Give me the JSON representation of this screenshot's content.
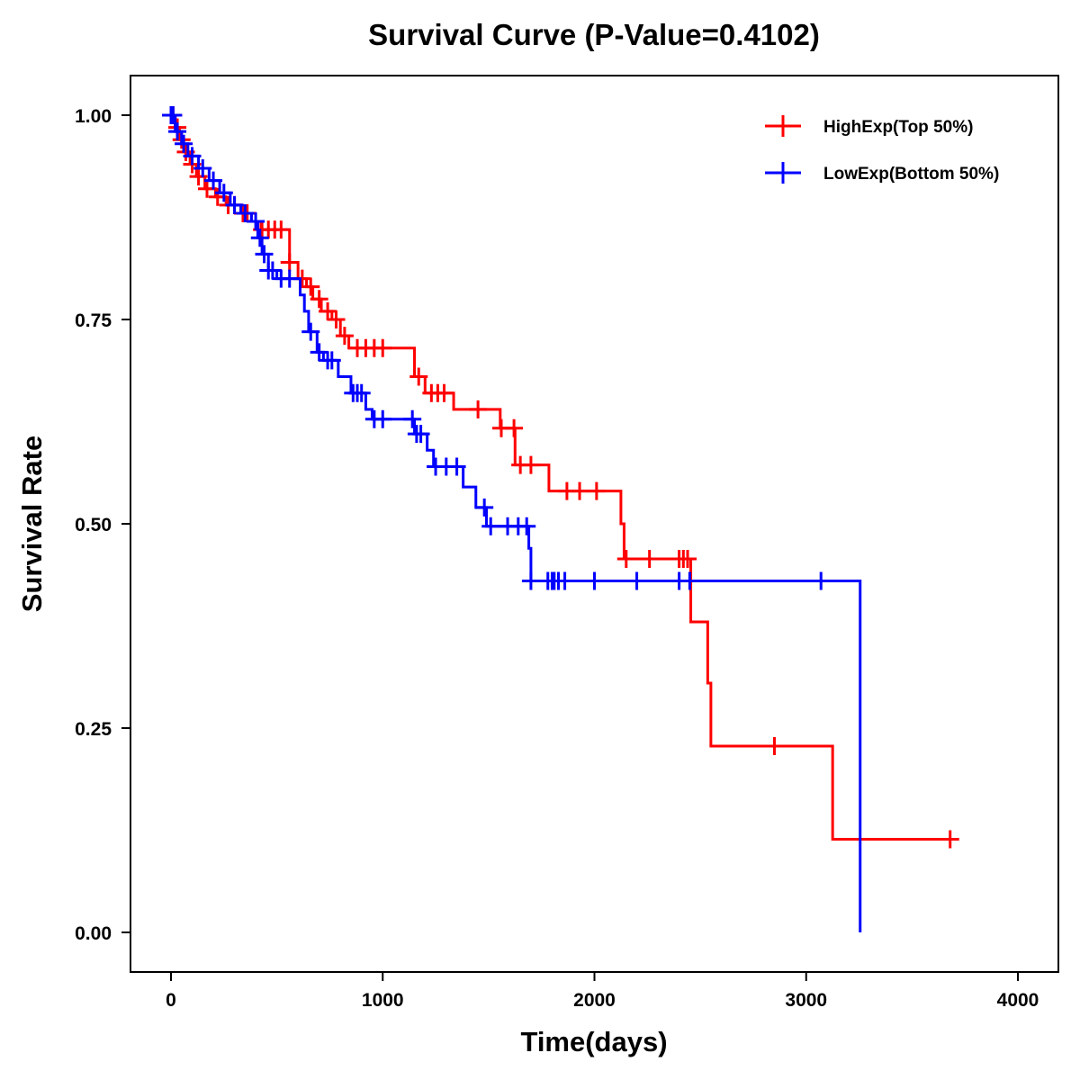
{
  "chart_data": {
    "type": "line",
    "subtype": "kaplan-meier",
    "title": "Survival Curve (P-Value=0.4102)",
    "xlabel": "Time(days)",
    "ylabel": "Survival Rate",
    "xlim": [
      -200,
      4200
    ],
    "ylim": [
      -0.05,
      1.05
    ],
    "xticks": [
      0,
      1000,
      2000,
      3000,
      4000
    ],
    "xtick_labels": [
      "0",
      "1000",
      "2000",
      "3000",
      "4000"
    ],
    "yticks": [
      0,
      0.25,
      0.5,
      0.75,
      1.0
    ],
    "ytick_labels": [
      "0.00",
      "0.25",
      "0.50",
      "0.75",
      "1.00"
    ],
    "grid": false,
    "legend_position": "top-right",
    "series": [
      {
        "name": "HighExp(Top 50%)",
        "color": "#ff0000",
        "end_time": 3710,
        "steps": [
          [
            0,
            1
          ],
          [
            20,
            0.985
          ],
          [
            40,
            0.97
          ],
          [
            60,
            0.955
          ],
          [
            90,
            0.94
          ],
          [
            120,
            0.925
          ],
          [
            160,
            0.91
          ],
          [
            210,
            0.9
          ],
          [
            260,
            0.89
          ],
          [
            330,
            0.88
          ],
          [
            380,
            0.87
          ],
          [
            425,
            0.86
          ],
          [
            560,
            0.82
          ],
          [
            600,
            0.8
          ],
          [
            640,
            0.79
          ],
          [
            670,
            0.775
          ],
          [
            710,
            0.76
          ],
          [
            760,
            0.75
          ],
          [
            800,
            0.73
          ],
          [
            840,
            0.715
          ],
          [
            1150,
            0.68
          ],
          [
            1200,
            0.66
          ],
          [
            1335,
            0.64
          ],
          [
            1555,
            0.617
          ],
          [
            1625,
            0.572
          ],
          [
            1785,
            0.54
          ],
          [
            2125,
            0.5
          ],
          [
            2140,
            0.457
          ],
          [
            2455,
            0.38
          ],
          [
            2535,
            0.305
          ],
          [
            2550,
            0.228
          ],
          [
            3125,
            0.114
          ]
        ],
        "censored": [
          10,
          30,
          50,
          70,
          100,
          130,
          170,
          220,
          270,
          300,
          340,
          360,
          430,
          460,
          490,
          520,
          560,
          620,
          660,
          700,
          740,
          780,
          820,
          880,
          920,
          960,
          1000,
          1170,
          1230,
          1260,
          1290,
          1450,
          1560,
          1620,
          1650,
          1700,
          1870,
          1930,
          2010,
          2150,
          2260,
          2400,
          2420,
          2440,
          2850,
          3680
        ]
      },
      {
        "name": "LowExp(Bottom 50%)",
        "color": "#0000ff",
        "end_time": 3255,
        "steps": [
          [
            0,
            1
          ],
          [
            20,
            0.98
          ],
          [
            50,
            0.965
          ],
          [
            80,
            0.95
          ],
          [
            130,
            0.935
          ],
          [
            180,
            0.92
          ],
          [
            230,
            0.905
          ],
          [
            280,
            0.89
          ],
          [
            330,
            0.88
          ],
          [
            380,
            0.87
          ],
          [
            410,
            0.85
          ],
          [
            430,
            0.83
          ],
          [
            460,
            0.81
          ],
          [
            500,
            0.8
          ],
          [
            610,
            0.78
          ],
          [
            630,
            0.76
          ],
          [
            650,
            0.735
          ],
          [
            690,
            0.71
          ],
          [
            720,
            0.7
          ],
          [
            790,
            0.68
          ],
          [
            850,
            0.66
          ],
          [
            920,
            0.64
          ],
          [
            950,
            0.628
          ],
          [
            1150,
            0.61
          ],
          [
            1210,
            0.59
          ],
          [
            1240,
            0.57
          ],
          [
            1380,
            0.545
          ],
          [
            1440,
            0.52
          ],
          [
            1490,
            0.497
          ],
          [
            1690,
            0.47
          ],
          [
            1700,
            0.43
          ],
          [
            3255,
            0.0
          ]
        ],
        "censored": [
          0,
          10,
          30,
          60,
          100,
          150,
          200,
          250,
          300,
          350,
          400,
          420,
          440,
          460,
          480,
          520,
          560,
          660,
          700,
          740,
          760,
          860,
          880,
          900,
          960,
          1000,
          1140,
          1160,
          1180,
          1250,
          1300,
          1350,
          1480,
          1510,
          1590,
          1640,
          1680,
          1700,
          1780,
          1800,
          1810,
          1830,
          1860,
          2000,
          2200,
          2400,
          2450,
          3070
        ]
      }
    ]
  }
}
